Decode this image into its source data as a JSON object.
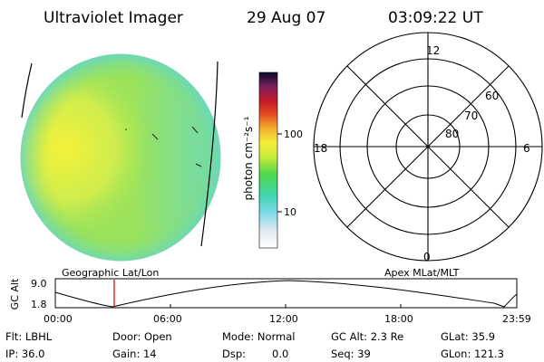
{
  "header": {
    "title": "Ultraviolet Imager",
    "date": "29 Aug 07",
    "time": "03:09:22 UT"
  },
  "colorbar": {
    "label": "photon cm⁻²s⁻¹",
    "ticks": [
      "100",
      "10"
    ]
  },
  "polar_plot": {
    "mlt_labels": [
      "12",
      "18",
      "6",
      "0"
    ],
    "lat_labels": [
      "60",
      "70",
      "80"
    ]
  },
  "panel_labels": {
    "left": "Geographic Lat/Lon",
    "right": "Apex MLat/MLT"
  },
  "altitude_chart": {
    "axis_label": "GC Alt",
    "y_ticks": [
      "9.0",
      "1.8"
    ],
    "x_ticks": [
      "00:00",
      "06:00",
      "12:00",
      "18:00",
      "23:59"
    ]
  },
  "status": {
    "flt": "Flt: LBHL",
    "ip": "IP: 36.0",
    "door": "Door: Open",
    "gain": "Gain: 14",
    "mode": "Mode: Normal",
    "dsp_label": "Dsp:",
    "dsp_value": "0.0",
    "gc_alt": "GC Alt: 2.3 Re",
    "seq": "Seq: 39",
    "glat": "GLat: 35.9",
    "glon": "GLon: 121.3"
  },
  "colors": {
    "disk_main": "#9be35a",
    "disk_warm": "#e6ef4a",
    "disk_edge": "#6fd9c8",
    "marker": "#cc0000"
  }
}
